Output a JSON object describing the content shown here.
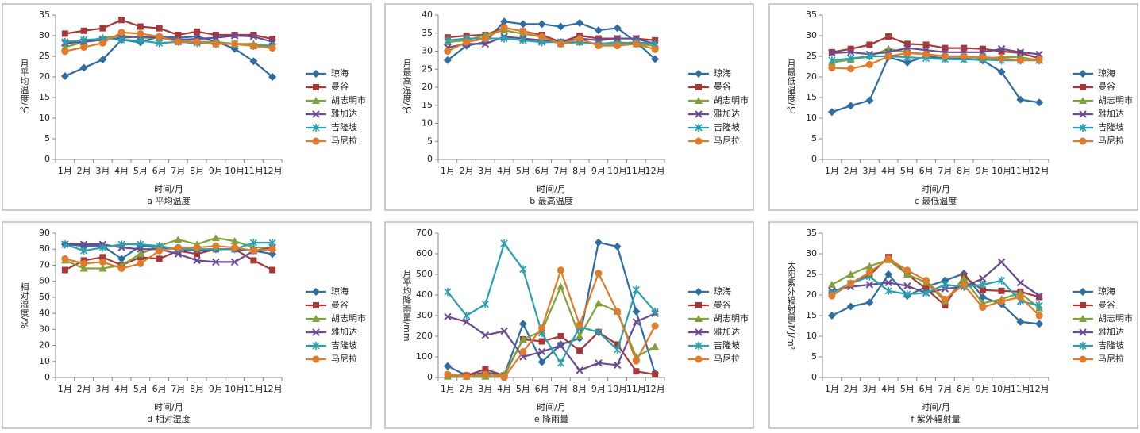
{
  "chart_data": [
    {
      "type": "line",
      "caption": "a 平均温度",
      "xlabel": "时间/月",
      "ylabel": "月平均温度/℃",
      "categories": [
        "1月",
        "2月",
        "3月",
        "4月",
        "5月",
        "6月",
        "7月",
        "8月",
        "9月",
        "10月",
        "11月",
        "12月"
      ],
      "ylim": [
        0,
        35
      ],
      "yticks": [
        0,
        5,
        10,
        15,
        20,
        25,
        30,
        35
      ],
      "series": [
        {
          "name": "琼海",
          "color": "#2e6da4",
          "marker": "diamond",
          "values": [
            20.2,
            22.2,
            24.2,
            29.0,
            28.4,
            29.8,
            29.5,
            29.8,
            28.6,
            26.8,
            23.8,
            20.0
          ]
        },
        {
          "name": "曼谷",
          "color": "#a83838",
          "marker": "square",
          "values": [
            30.5,
            31.2,
            31.8,
            33.8,
            32.2,
            31.8,
            30.2,
            31.0,
            30.2,
            30.2,
            30.2,
            29.2
          ]
        },
        {
          "name": "胡志明市",
          "color": "#7fa33a",
          "marker": "triangle",
          "values": [
            27.2,
            28.5,
            29.5,
            30.0,
            29.5,
            29.5,
            28.8,
            28.5,
            28.5,
            28.0,
            28.0,
            27.5
          ]
        },
        {
          "name": "雅加达",
          "color": "#6a4a94",
          "marker": "x",
          "values": [
            28.2,
            28.5,
            29.0,
            29.5,
            29.8,
            29.5,
            29.0,
            29.2,
            29.5,
            30.0,
            29.8,
            28.5
          ]
        },
        {
          "name": "吉隆坡",
          "color": "#2aa0b0",
          "marker": "asterisk",
          "values": [
            28.5,
            29.0,
            29.2,
            29.0,
            28.8,
            28.2,
            28.5,
            28.2,
            28.0,
            28.0,
            27.5,
            27.5
          ]
        },
        {
          "name": "马尼拉",
          "color": "#e07b2a",
          "marker": "circle",
          "values": [
            26.2,
            27.2,
            28.2,
            30.8,
            30.5,
            29.8,
            28.5,
            28.5,
            28.0,
            28.0,
            27.5,
            27.0
          ]
        }
      ]
    },
    {
      "type": "line",
      "caption": "b 最高温度",
      "xlabel": "时间/月",
      "ylabel": "月最高温度/℃",
      "categories": [
        "1月",
        "2月",
        "3月",
        "4月",
        "5月",
        "6月",
        "7月",
        "8月",
        "9月",
        "10月",
        "11月",
        "12月"
      ],
      "ylim": [
        0,
        40
      ],
      "yticks": [
        0,
        5,
        10,
        15,
        20,
        25,
        30,
        35,
        40
      ],
      "series": [
        {
          "name": "琼海",
          "color": "#2e6da4",
          "marker": "diamond",
          "values": [
            27.5,
            31.5,
            32.5,
            38.2,
            37.5,
            37.5,
            36.8,
            37.8,
            35.8,
            36.4,
            32.5,
            27.8
          ]
        },
        {
          "name": "曼谷",
          "color": "#a83838",
          "marker": "square",
          "values": [
            33.8,
            34.3,
            34.5,
            36.5,
            35.5,
            34.5,
            32.5,
            34.3,
            33.5,
            33.5,
            33.5,
            33.0
          ]
        },
        {
          "name": "胡志明市",
          "color": "#7fa33a",
          "marker": "triangle",
          "values": [
            32.5,
            33.0,
            34.5,
            35.8,
            34.8,
            34.0,
            32.0,
            32.5,
            32.0,
            32.5,
            32.0,
            31.5
          ]
        },
        {
          "name": "雅加达",
          "color": "#6a4a94",
          "marker": "x",
          "values": [
            31.0,
            32.0,
            32.0,
            34.0,
            33.5,
            33.0,
            32.5,
            33.5,
            33.0,
            33.5,
            33.5,
            32.0
          ]
        },
        {
          "name": "吉隆坡",
          "color": "#2aa0b0",
          "marker": "asterisk",
          "values": [
            33.0,
            33.5,
            33.5,
            33.5,
            33.0,
            32.5,
            32.5,
            32.5,
            32.0,
            32.0,
            32.5,
            32.0
          ]
        },
        {
          "name": "马尼拉",
          "color": "#e07b2a",
          "marker": "circle",
          "values": [
            30.0,
            32.5,
            33.5,
            36.5,
            35.5,
            34.0,
            32.0,
            33.5,
            31.5,
            31.5,
            32.0,
            30.5
          ]
        }
      ]
    },
    {
      "type": "line",
      "caption": "c 最低温度",
      "xlabel": "时间/月",
      "ylabel": "月最低温度/℃",
      "categories": [
        "1月",
        "2月",
        "3月",
        "4月",
        "5月",
        "6月",
        "7月",
        "8月",
        "9月",
        "10月",
        "11月",
        "12月"
      ],
      "ylim": [
        0,
        35
      ],
      "yticks": [
        0,
        5,
        10,
        15,
        20,
        25,
        30,
        35
      ],
      "series": [
        {
          "name": "琼海",
          "color": "#2e6da4",
          "marker": "diamond",
          "values": [
            11.5,
            13.0,
            14.3,
            24.8,
            23.5,
            25.0,
            24.5,
            24.5,
            24.0,
            21.2,
            14.5,
            13.8
          ]
        },
        {
          "name": "曼谷",
          "color": "#a83838",
          "marker": "square",
          "values": [
            26.0,
            26.8,
            27.8,
            29.8,
            28.0,
            27.8,
            27.0,
            27.0,
            26.8,
            26.2,
            25.8,
            24.5
          ]
        },
        {
          "name": "胡志明市",
          "color": "#7fa33a",
          "marker": "triangle",
          "values": [
            23.5,
            24.2,
            25.0,
            26.8,
            26.0,
            25.5,
            25.0,
            25.0,
            24.5,
            24.8,
            24.8,
            24.0
          ]
        },
        {
          "name": "雅加达",
          "color": "#6a4a94",
          "marker": "x",
          "values": [
            25.8,
            26.0,
            25.5,
            26.0,
            27.0,
            26.5,
            26.0,
            26.0,
            26.0,
            26.8,
            26.0,
            25.5
          ]
        },
        {
          "name": "吉隆坡",
          "color": "#2aa0b0",
          "marker": "asterisk",
          "values": [
            24.0,
            24.5,
            25.0,
            25.0,
            24.8,
            24.5,
            24.3,
            24.2,
            24.2,
            24.0,
            24.0,
            24.0
          ]
        },
        {
          "name": "马尼拉",
          "color": "#e07b2a",
          "marker": "circle",
          "values": [
            22.2,
            22.0,
            23.0,
            25.0,
            25.8,
            25.5,
            25.0,
            25.0,
            24.8,
            24.5,
            24.0,
            24.2
          ]
        }
      ]
    },
    {
      "type": "line",
      "caption": "d 相对湿度",
      "xlabel": "时间/月",
      "ylabel": "相对湿度/%",
      "categories": [
        "1月",
        "2月",
        "3月",
        "4月",
        "5月",
        "6月",
        "7月",
        "8月",
        "9月",
        "10月",
        "11月",
        "12月"
      ],
      "ylim": [
        0,
        90
      ],
      "yticks": [
        0,
        10,
        20,
        30,
        40,
        50,
        60,
        70,
        80,
        90
      ],
      "series": [
        {
          "name": "琼海",
          "color": "#2e6da4",
          "marker": "diamond",
          "values": [
            83,
            82,
            82,
            74,
            82,
            81,
            80,
            79,
            80,
            80,
            79,
            77
          ]
        },
        {
          "name": "曼谷",
          "color": "#a83838",
          "marker": "square",
          "values": [
            67,
            73,
            75,
            70,
            75,
            74,
            79,
            77,
            80,
            80,
            73,
            67
          ]
        },
        {
          "name": "胡志明市",
          "color": "#7fa33a",
          "marker": "triangle",
          "values": [
            73,
            68,
            68,
            70,
            77,
            82,
            86,
            83,
            87,
            85,
            81,
            81
          ]
        },
        {
          "name": "雅加达",
          "color": "#6a4a94",
          "marker": "x",
          "values": [
            83,
            83,
            83,
            81,
            80,
            80,
            77,
            73,
            72,
            72,
            79,
            81
          ]
        },
        {
          "name": "吉隆坡",
          "color": "#2aa0b0",
          "marker": "asterisk",
          "values": [
            83,
            79,
            81,
            83,
            83,
            82,
            80,
            80,
            80,
            80,
            84,
            84
          ]
        },
        {
          "name": "马尼拉",
          "color": "#e07b2a",
          "marker": "circle",
          "values": [
            74,
            71,
            72,
            68,
            71,
            79,
            81,
            81,
            82,
            81,
            79,
            80
          ]
        }
      ]
    },
    {
      "type": "line",
      "caption": "e 降雨量",
      "xlabel": "时间/月",
      "ylabel": "月平均降雨量/mm",
      "categories": [
        "1月",
        "2月",
        "3月",
        "4月",
        "5月",
        "6月",
        "7月",
        "8月",
        "9月",
        "10月",
        "11月",
        "12月"
      ],
      "ylim": [
        0,
        700
      ],
      "yticks": [
        0,
        100,
        200,
        300,
        400,
        500,
        600,
        700
      ],
      "series": [
        {
          "name": "琼海",
          "color": "#2e6da4",
          "marker": "diamond",
          "values": [
            55,
            10,
            25,
            10,
            260,
            75,
            160,
            190,
            655,
            635,
            320,
            20
          ]
        },
        {
          "name": "曼谷",
          "color": "#a83838",
          "marker": "square",
          "values": [
            10,
            10,
            40,
            10,
            185,
            175,
            200,
            130,
            220,
            160,
            30,
            15
          ]
        },
        {
          "name": "胡志明市",
          "color": "#7fa33a",
          "marker": "triangle",
          "values": [
            5,
            5,
            5,
            15,
            185,
            225,
            440,
            200,
            360,
            320,
            100,
            150
          ]
        },
        {
          "name": "雅加达",
          "color": "#6a4a94",
          "marker": "x",
          "values": [
            295,
            270,
            205,
            225,
            100,
            125,
            155,
            35,
            70,
            60,
            270,
            310
          ]
        },
        {
          "name": "吉隆坡",
          "color": "#2aa0b0",
          "marker": "asterisk",
          "values": [
            415,
            300,
            355,
            650,
            525,
            215,
            70,
            245,
            220,
            135,
            425,
            320
          ]
        },
        {
          "name": "马尼拉",
          "color": "#e07b2a",
          "marker": "circle",
          "values": [
            15,
            5,
            15,
            0,
            125,
            240,
            520,
            255,
            505,
            320,
            80,
            250
          ]
        }
      ]
    },
    {
      "type": "line",
      "caption": "f 紫外辐射量",
      "xlabel": "时间/月",
      "ylabel": "太阳紫外辐射量/MJ/m²",
      "categories": [
        "1月",
        "2月",
        "3月",
        "4月",
        "5月",
        "6月",
        "7月",
        "8月",
        "9月",
        "10月",
        "11月",
        "12月"
      ],
      "ylim": [
        0,
        35
      ],
      "yticks": [
        0,
        5,
        10,
        15,
        20,
        25,
        30,
        35
      ],
      "series": [
        {
          "name": "琼海",
          "color": "#2e6da4",
          "marker": "diamond",
          "values": [
            15.0,
            17.2,
            18.2,
            25.0,
            19.8,
            22.0,
            23.5,
            25.2,
            19.5,
            17.8,
            13.5,
            13.0
          ]
        },
        {
          "name": "曼谷",
          "color": "#a83838",
          "marker": "square",
          "values": [
            20.5,
            22.8,
            24.8,
            29.2,
            25.0,
            21.5,
            17.5,
            24.5,
            21.2,
            21.0,
            20.8,
            19.5
          ]
        },
        {
          "name": "胡志明市",
          "color": "#7fa33a",
          "marker": "triangle",
          "values": [
            22.5,
            25.0,
            27.0,
            28.5,
            25.0,
            23.0,
            18.5,
            24.0,
            18.0,
            19.0,
            20.5,
            16.8
          ]
        },
        {
          "name": "雅加达",
          "color": "#6a4a94",
          "marker": "x",
          "values": [
            21.0,
            22.0,
            22.5,
            23.0,
            22.2,
            20.5,
            21.5,
            22.0,
            24.0,
            28.0,
            23.0,
            19.8
          ]
        },
        {
          "name": "吉隆坡",
          "color": "#2aa0b0",
          "marker": "asterisk",
          "values": [
            20.5,
            22.8,
            24.5,
            21.0,
            20.2,
            20.5,
            22.5,
            22.0,
            22.5,
            23.5,
            18.5,
            17.5
          ]
        },
        {
          "name": "马尼拉",
          "color": "#e07b2a",
          "marker": "circle",
          "values": [
            19.8,
            22.8,
            25.5,
            28.8,
            26.0,
            23.5,
            19.0,
            22.5,
            17.0,
            18.5,
            19.5,
            15.0
          ]
        }
      ]
    }
  ]
}
